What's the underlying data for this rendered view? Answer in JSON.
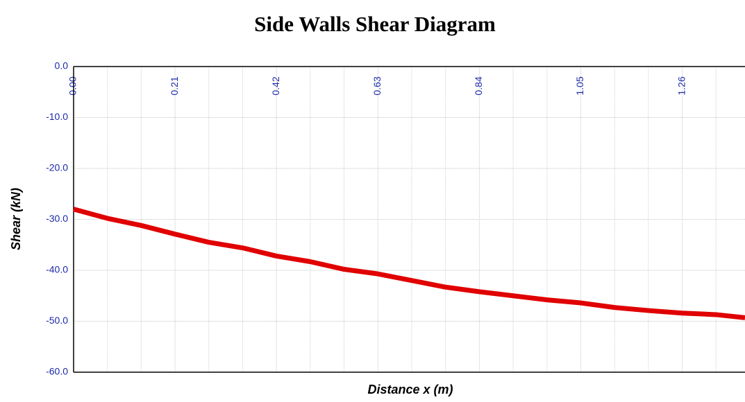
{
  "chart_data": {
    "type": "line",
    "title": "Side Walls Shear Diagram",
    "x_label": "Distance x (m)",
    "y_label": "Shear (kN)",
    "x": [
      0,
      0.07,
      0.14,
      0.21,
      0.28,
      0.35,
      0.42,
      0.49,
      0.56,
      0.63,
      0.7,
      0.77,
      0.84,
      0.91,
      0.98,
      1.05,
      1.12,
      1.19,
      1.26,
      1.33,
      1.39
    ],
    "series": [
      {
        "name": "Shear",
        "color": "#e00000",
        "values": [
          -28,
          -29.8,
          -31.2,
          -32.9,
          -34.5,
          -35.6,
          -37.2,
          -38.3,
          -39.8,
          -40.7,
          -42.0,
          -43.3,
          -44.2,
          -45.0,
          -45.8,
          -46.4,
          -47.3,
          -47.9,
          -48.4,
          -48.7,
          -49.3
        ]
      }
    ],
    "xlim": [
      0,
      1.39
    ],
    "ylim": [
      -60,
      0
    ],
    "xticks": [
      {
        "value": 0,
        "label": "0.00"
      },
      0.21,
      0.42,
      0.63,
      0.84,
      1.05,
      1.26
    ],
    "x_minor_ticks": [
      0.07,
      0.14,
      0.28,
      0.35,
      0.49,
      0.56,
      0.7,
      0.77,
      0.91,
      0.98,
      1.12,
      1.19,
      1.33
    ],
    "yticks": [
      {
        "value": 0,
        "label": "0.0"
      },
      {
        "value": -10,
        "label": "-10.0"
      },
      {
        "value": -20,
        "label": "-20.0"
      },
      {
        "value": -30,
        "label": "-30.0"
      },
      {
        "value": -40,
        "label": "-40.0"
      },
      {
        "value": -50,
        "label": "-50.0"
      },
      {
        "value": -60,
        "label": "-60.0"
      }
    ],
    "grid": true
  }
}
